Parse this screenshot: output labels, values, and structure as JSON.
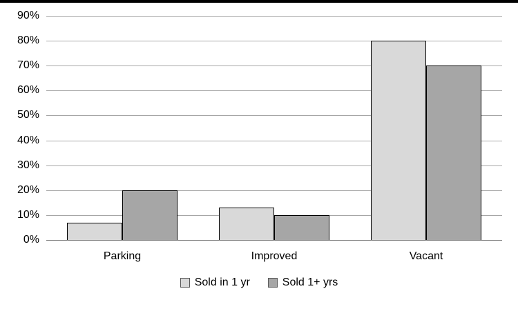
{
  "chart_data": {
    "type": "bar",
    "title": "",
    "xlabel": "",
    "ylabel": "",
    "categories": [
      "Parking",
      "Improved",
      "Vacant"
    ],
    "series": [
      {
        "name": "Sold in 1 yr",
        "color": "#d9d9d9",
        "values": [
          7,
          13,
          80
        ]
      },
      {
        "name": "Sold 1+ yrs",
        "color": "#a6a6a6",
        "values": [
          20,
          10,
          70
        ]
      }
    ],
    "ylim": [
      0,
      90
    ],
    "y_ticks": [
      "0%",
      "10%",
      "20%",
      "30%",
      "40%",
      "50%",
      "60%",
      "70%",
      "80%",
      "90%"
    ],
    "y_tick_interval": 10,
    "grid": true,
    "legend_position": "bottom",
    "colors": {
      "background": "#ffffff",
      "top_border": "#000000",
      "gridline": "#a6a6a6",
      "axis_line": "#7f7f7f",
      "bar_border": "#000000",
      "text": "#000000"
    }
  }
}
